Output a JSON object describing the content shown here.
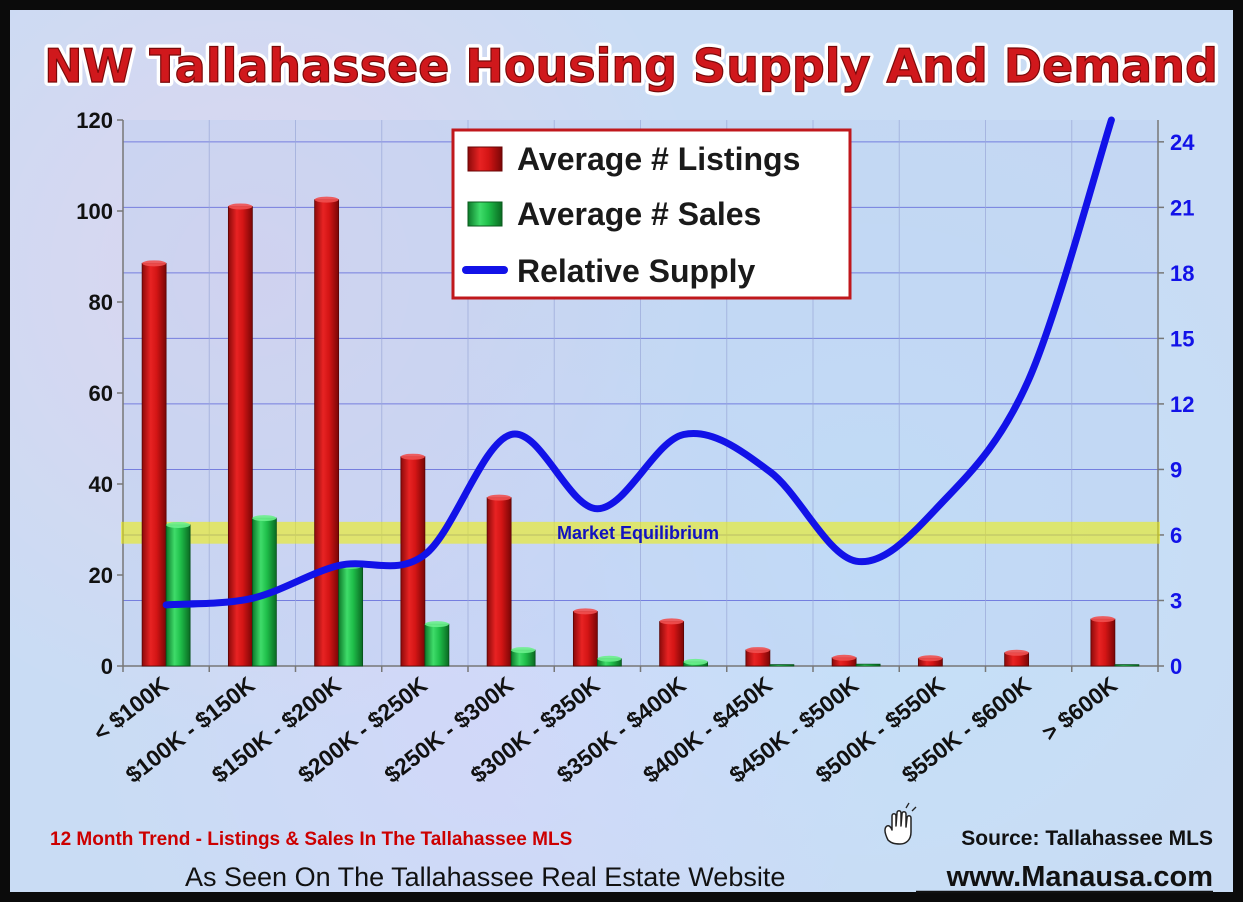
{
  "chart_data": {
    "type": "bar",
    "title": "NW Tallahassee Housing Supply And Demand",
    "categories": [
      "< $100K",
      "$100K - $150K",
      "$150K - $200K",
      "$200K - $250K",
      "$250K - $300K",
      "$300K - $350K",
      "$350K - $400K",
      "$400K - $450K",
      "$450K - $500K",
      "$500K - $550K",
      "$550K - $600K",
      "> $600K"
    ],
    "series": [
      {
        "name": "Average # Listings",
        "type": "bar",
        "axis": "left",
        "color": "#d41515",
        "values": [
          88.5,
          101,
          102.5,
          46,
          37,
          12,
          9.8,
          3.5,
          1.8,
          1.7,
          2.9,
          10.3
        ]
      },
      {
        "name": "Average # Sales",
        "type": "bar",
        "axis": "left",
        "color": "#1fbf4a",
        "values": [
          31,
          32.5,
          22,
          9.2,
          3.5,
          1.6,
          0.9,
          0.3,
          0.4,
          0,
          0,
          0.3
        ]
      },
      {
        "name": "Relative Supply",
        "type": "line",
        "axis": "right",
        "color": "#1212e8",
        "values": [
          2.8,
          3.1,
          4.6,
          5.1,
          10.6,
          7.2,
          10.6,
          8.9,
          4.8,
          7.5,
          13.1,
          25.5
        ]
      }
    ],
    "y_left": {
      "min": 0,
      "max": 120,
      "ticks": [
        0,
        20,
        40,
        60,
        80,
        100,
        120
      ]
    },
    "y_right": {
      "min": 0,
      "max": 25,
      "ticks": [
        0,
        3,
        6,
        9,
        12,
        15,
        18,
        21,
        24
      ],
      "color": "#1212e8"
    },
    "equilibrium": {
      "label": "Market Equilibrium",
      "from": 5.6,
      "to": 6.6,
      "axis": "right",
      "color": "#f2f000"
    },
    "grid": true,
    "legend_position": "top-center"
  },
  "footer": {
    "trend_note": "12 Month Trend - Listings & Sales In The Tallahassee MLS",
    "source": "Source: Tallahassee MLS",
    "seen_on": "As Seen On The Tallahassee Real Estate Website",
    "website": "www.Manausa.com"
  },
  "colors": {
    "title_red": "#d0181c",
    "note_red": "#cc0000",
    "right_axis_blue": "#1212e8"
  },
  "icons": {
    "hand": "hand-icon"
  }
}
